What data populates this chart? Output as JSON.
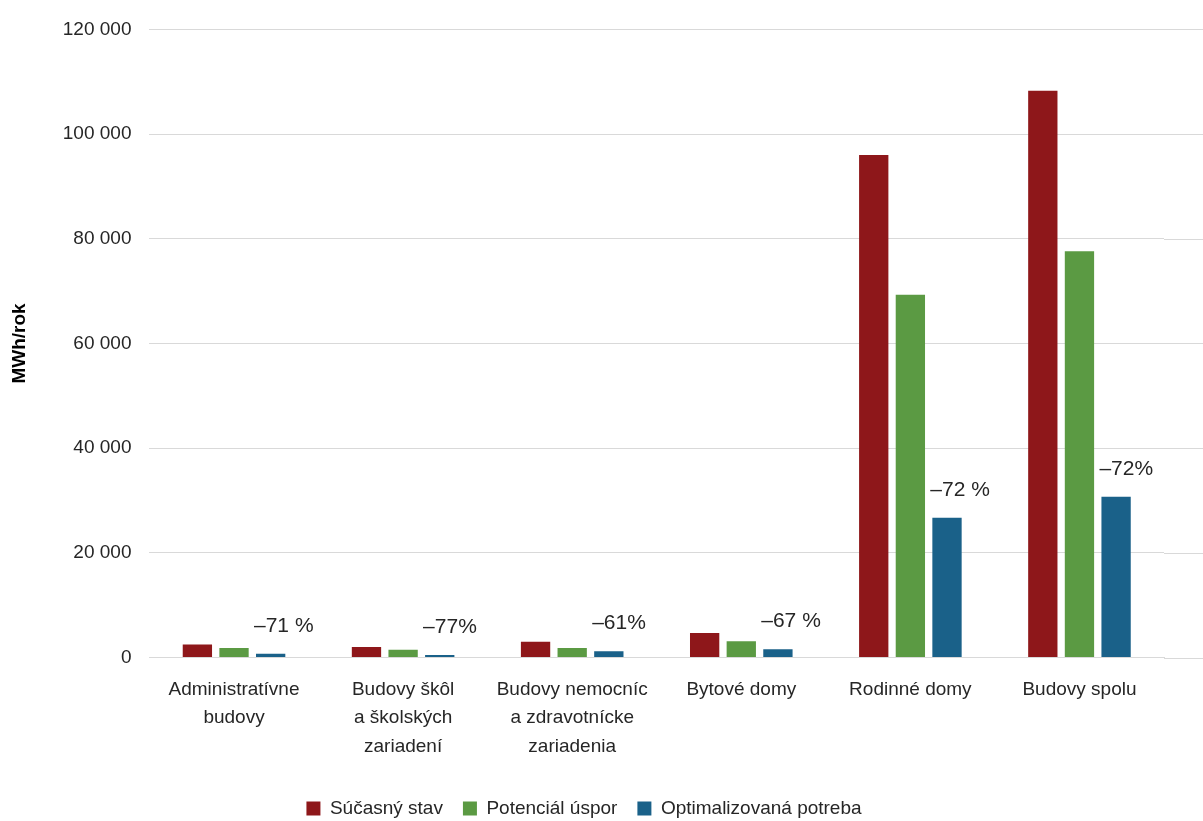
{
  "chart_data": {
    "type": "bar",
    "ylabel": "MWh/rok",
    "categories": [
      "Administratívne budovy",
      "Budovy škôl a školských zariadení",
      "Budovy nemocníc a zdravotnícke zariadenia",
      "Bytové domy",
      "Rodinné domy",
      "Budovy spolu"
    ],
    "series": [
      {
        "name": "Súčasný stav",
        "color": "#8e171a",
        "values": [
          2500,
          2000,
          3000,
          4700,
          96000,
          108300
        ]
      },
      {
        "name": "Potenciál úspor",
        "color": "#5b9a43",
        "values": [
          1800,
          1500,
          1800,
          3100,
          69300,
          77600
        ]
      },
      {
        "name": "Optimalizovaná potreba",
        "color": "#1a6189",
        "values": [
          700,
          500,
          1200,
          1600,
          26700,
          30700
        ]
      }
    ],
    "ylim": [
      0,
      120000
    ],
    "yticks": [
      0,
      {
        "value": 20000,
        "label": "20 000"
      },
      {
        "value": 40000,
        "label": "40 000"
      },
      {
        "value": 60000,
        "label": "60 000"
      },
      {
        "value": 80000,
        "label": "80 000"
      },
      {
        "value": 100000,
        "label": "100 000"
      },
      {
        "value": 120000,
        "label": "120 000"
      }
    ],
    "grid": "y",
    "legend": "bottom",
    "annotations": [
      "–71 %",
      "–77%",
      "–61%",
      "–67 %",
      "–72 %",
      "–72%"
    ]
  }
}
